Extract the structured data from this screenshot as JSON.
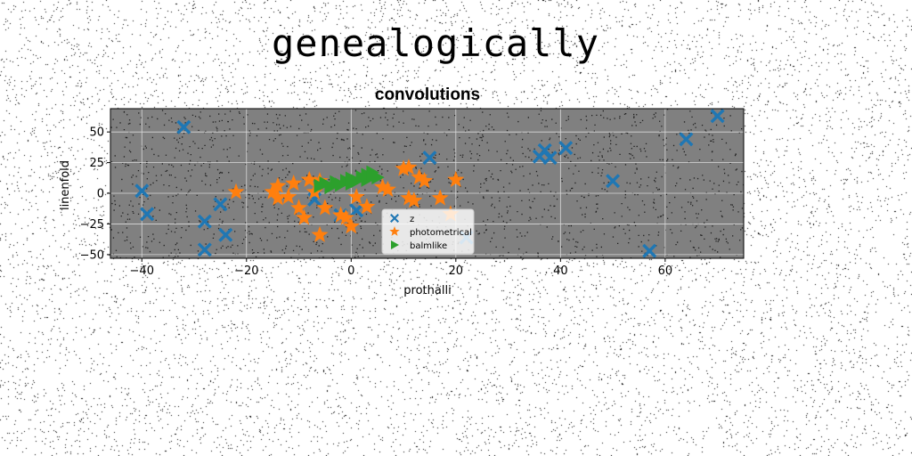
{
  "figure": {
    "suptitle": "genealogically"
  },
  "colors": {
    "plot_background": "#808080",
    "grid": "#d9d9d9",
    "series_z": "#1f77b4",
    "series_photometrical": "#ff7f0e",
    "series_balmlike": "#2ca02c"
  },
  "chart_data": {
    "type": "scatter",
    "title": "convolutions",
    "xlabel": "prothalli",
    "ylabel": "linenfold",
    "xlim": [
      -46,
      75
    ],
    "ylim": [
      -53,
      69
    ],
    "xticks": [
      -40,
      -20,
      0,
      20,
      40,
      60
    ],
    "yticks": [
      -50,
      -25,
      0,
      25,
      50
    ],
    "xtick_labels": [
      "−40",
      "−20",
      "0",
      "20",
      "40",
      "60"
    ],
    "ytick_labels": [
      "−50",
      "−25",
      "0",
      "25",
      "50"
    ],
    "grid": true,
    "legend_position": "lower-center",
    "series": [
      {
        "name": "z",
        "marker": "x-filled",
        "color": "#1f77b4",
        "points": [
          [
            -32,
            54
          ],
          [
            15,
            29
          ],
          [
            36,
            30
          ],
          [
            37,
            35
          ],
          [
            38,
            29
          ],
          [
            41,
            37
          ],
          [
            50,
            10
          ],
          [
            64,
            44
          ],
          [
            70,
            63
          ],
          [
            57,
            -47
          ],
          [
            22,
            -36
          ],
          [
            -40,
            2
          ],
          [
            -39,
            -17
          ],
          [
            -25,
            -9
          ],
          [
            -28,
            -23
          ],
          [
            -24,
            -34
          ],
          [
            -28,
            -46
          ],
          [
            -7,
            -5
          ],
          [
            -2,
            -18
          ],
          [
            1,
            -14
          ]
        ]
      },
      {
        "name": "photometrical",
        "marker": "star",
        "color": "#ff7f0e",
        "points": [
          [
            -22,
            1
          ],
          [
            -14,
            6
          ],
          [
            -14,
            -4
          ],
          [
            -11,
            8
          ],
          [
            -12,
            -3
          ],
          [
            -10,
            -12
          ],
          [
            -9,
            -20
          ],
          [
            -8,
            11
          ],
          [
            -6,
            10
          ],
          [
            -5,
            -12
          ],
          [
            -6,
            -34
          ],
          [
            -2,
            -18
          ],
          [
            -1,
            -20
          ],
          [
            0,
            -27
          ],
          [
            1,
            -3
          ],
          [
            3,
            -11
          ],
          [
            6,
            5
          ],
          [
            7,
            3
          ],
          [
            10,
            20
          ],
          [
            11,
            21
          ],
          [
            11,
            -4
          ],
          [
            12,
            -6
          ],
          [
            13,
            13
          ],
          [
            14,
            10
          ],
          [
            17,
            -4
          ],
          [
            19,
            -17
          ],
          [
            20,
            11
          ],
          [
            -15,
            1
          ],
          [
            -7,
            1
          ]
        ]
      },
      {
        "name": "balmlike",
        "marker": "triangle-right",
        "color": "#2ca02c",
        "points": [
          [
            -6,
            6
          ],
          [
            -5,
            8
          ],
          [
            -4,
            5
          ],
          [
            -3,
            9
          ],
          [
            -2,
            7
          ],
          [
            -1,
            10
          ],
          [
            0,
            8
          ],
          [
            0,
            12
          ],
          [
            1,
            10
          ],
          [
            2,
            13
          ],
          [
            3,
            11
          ],
          [
            3,
            15
          ],
          [
            4,
            14
          ],
          [
            4,
            17
          ],
          [
            5,
            13
          ]
        ]
      }
    ]
  }
}
